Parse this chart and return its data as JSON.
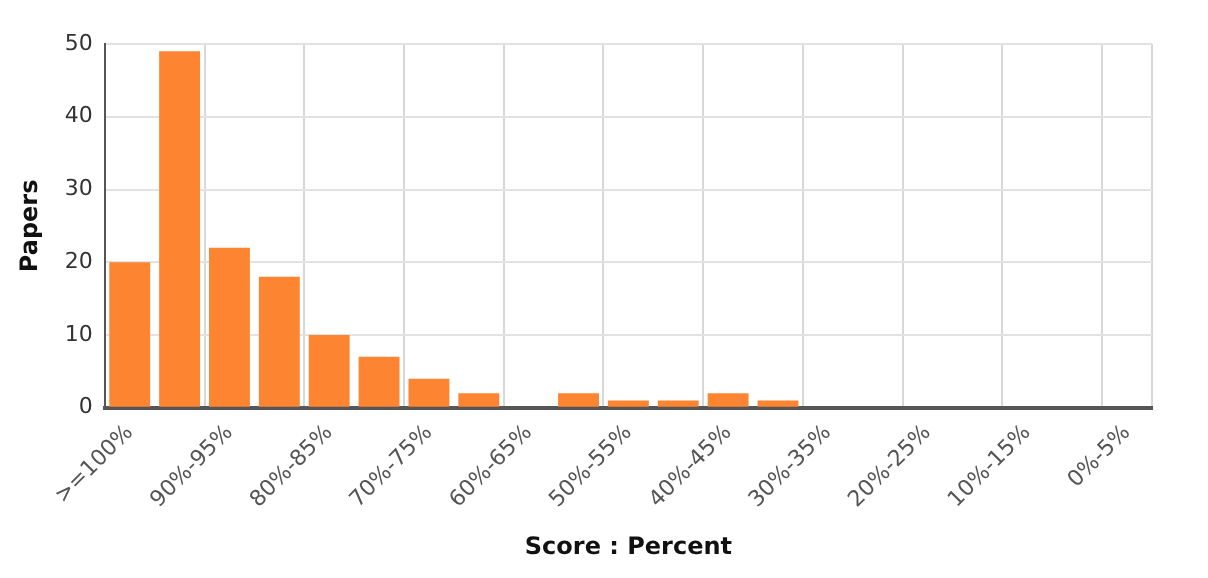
{
  "chart_data": {
    "type": "bar",
    "xlabel": "Score : Percent",
    "ylabel": "Papers",
    "categories": [
      ">=100%",
      null,
      "90%-95%",
      null,
      "80%-85%",
      null,
      "70%-75%",
      null,
      "60%-65%",
      null,
      "50%-55%",
      null,
      "40%-45%",
      null,
      "30%-35%",
      null,
      "20%-25%",
      null,
      "10%-15%",
      null,
      "0%-5%"
    ],
    "values": [
      20,
      49,
      22,
      18,
      10,
      7,
      4,
      2,
      0,
      2,
      1,
      1,
      2,
      1,
      0,
      0,
      0,
      0,
      0,
      0,
      0
    ],
    "color": "#fd8532",
    "ylim": [
      0,
      50
    ],
    "yticks": [
      0,
      10,
      20,
      30,
      40,
      50
    ],
    "grid": true
  }
}
